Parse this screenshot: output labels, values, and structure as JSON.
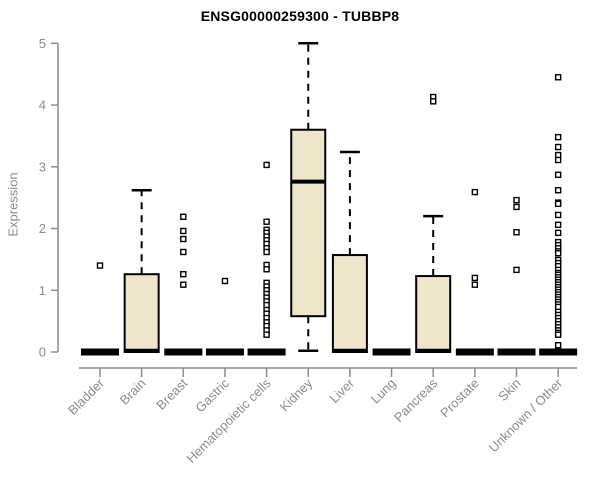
{
  "chart_data": {
    "type": "boxplot",
    "title": "ENSG00000259300 - TUBBP8",
    "ylabel": "Expression",
    "xlabel": "",
    "ylim": [
      0,
      5
    ],
    "yticks": [
      0,
      1,
      2,
      3,
      4,
      5
    ],
    "grid": false,
    "legend": "none",
    "colors": {
      "box_fill": "#EDE6CB",
      "axis": "#8C8C8C",
      "ink": "#000000",
      "background": "#FFFFFF"
    },
    "categories": [
      "Bladder",
      "Brain",
      "Breast",
      "Gastric",
      "Hematopoietic cells",
      "Kidney",
      "Liver",
      "Lung",
      "Pancreas",
      "Prostate",
      "Skin",
      "Unknown / Other"
    ],
    "series": [
      {
        "label": "Bladder",
        "q1": 0,
        "median": 0.02,
        "q3": 0.02,
        "whisker_low": 0,
        "whisker_high": 0.02,
        "outliers": [
          1.4
        ]
      },
      {
        "label": "Brain",
        "q1": 0,
        "median": 0.02,
        "q3": 1.26,
        "whisker_low": 0,
        "whisker_high": 2.62,
        "outliers": []
      },
      {
        "label": "Breast",
        "q1": 0,
        "median": 0.02,
        "q3": 0.02,
        "whisker_low": 0,
        "whisker_high": 0.02,
        "outliers": [
          2.19,
          1.96,
          1.83,
          1.62,
          1.26,
          1.09
        ]
      },
      {
        "label": "Gastric",
        "q1": 0,
        "median": 0.02,
        "q3": 0.02,
        "whisker_low": 0,
        "whisker_high": 0.02,
        "outliers": [
          1.15
        ]
      },
      {
        "label": "Hematopoietic cells",
        "q1": 0,
        "median": 0.02,
        "q3": 0.02,
        "whisker_low": 0,
        "whisker_high": 0.02,
        "outliers": [
          3.03,
          2.11,
          1.98,
          1.93,
          1.87,
          1.81,
          1.75,
          1.68,
          1.62,
          1.41,
          1.34,
          1.12,
          1.06,
          1.0,
          0.94,
          0.88,
          0.82,
          0.76,
          0.68,
          0.62,
          0.55,
          0.48,
          0.42,
          0.35,
          0.28
        ]
      },
      {
        "label": "Kidney",
        "q1": 0.58,
        "median": 2.76,
        "q3": 3.6,
        "whisker_low": 0.02,
        "whisker_high": 5.0,
        "outliers": []
      },
      {
        "label": "Liver",
        "q1": 0,
        "median": 0.02,
        "q3": 1.57,
        "whisker_low": 0,
        "whisker_high": 3.24,
        "outliers": []
      },
      {
        "label": "Lung",
        "q1": 0,
        "median": 0.02,
        "q3": 0.02,
        "whisker_low": 0,
        "whisker_high": 0.02,
        "outliers": []
      },
      {
        "label": "Pancreas",
        "q1": 0,
        "median": 0.02,
        "q3": 1.23,
        "whisker_low": 0,
        "whisker_high": 2.2,
        "outliers": [
          4.13,
          4.06
        ]
      },
      {
        "label": "Prostate",
        "q1": 0,
        "median": 0.02,
        "q3": 0.02,
        "whisker_low": 0,
        "whisker_high": 0.02,
        "outliers": [
          2.59,
          1.2,
          1.09
        ]
      },
      {
        "label": "Skin",
        "q1": 0,
        "median": 0.02,
        "q3": 0.02,
        "whisker_low": 0,
        "whisker_high": 0.02,
        "outliers": [
          2.46,
          2.35,
          1.94,
          1.33
        ]
      },
      {
        "label": "Unknown / Other",
        "q1": 0,
        "median": 0.02,
        "q3": 0.02,
        "whisker_low": 0,
        "whisker_high": 0.02,
        "outliers": [
          4.45,
          3.48,
          3.32,
          3.19,
          3.11,
          2.87,
          2.62,
          2.42,
          2.4,
          2.22,
          2.06,
          1.93,
          1.78,
          1.73,
          1.68,
          1.63,
          1.6,
          1.49,
          1.44,
          1.39,
          1.33,
          1.28,
          1.25,
          1.21,
          1.17,
          1.13,
          1.09,
          1.05,
          1.01,
          0.97,
          0.93,
          0.89,
          0.85,
          0.81,
          0.77,
          0.73,
          0.65,
          0.6,
          0.55,
          0.5,
          0.45,
          0.4,
          0.35,
          0.31,
          0.28,
          0.11
        ]
      }
    ]
  }
}
